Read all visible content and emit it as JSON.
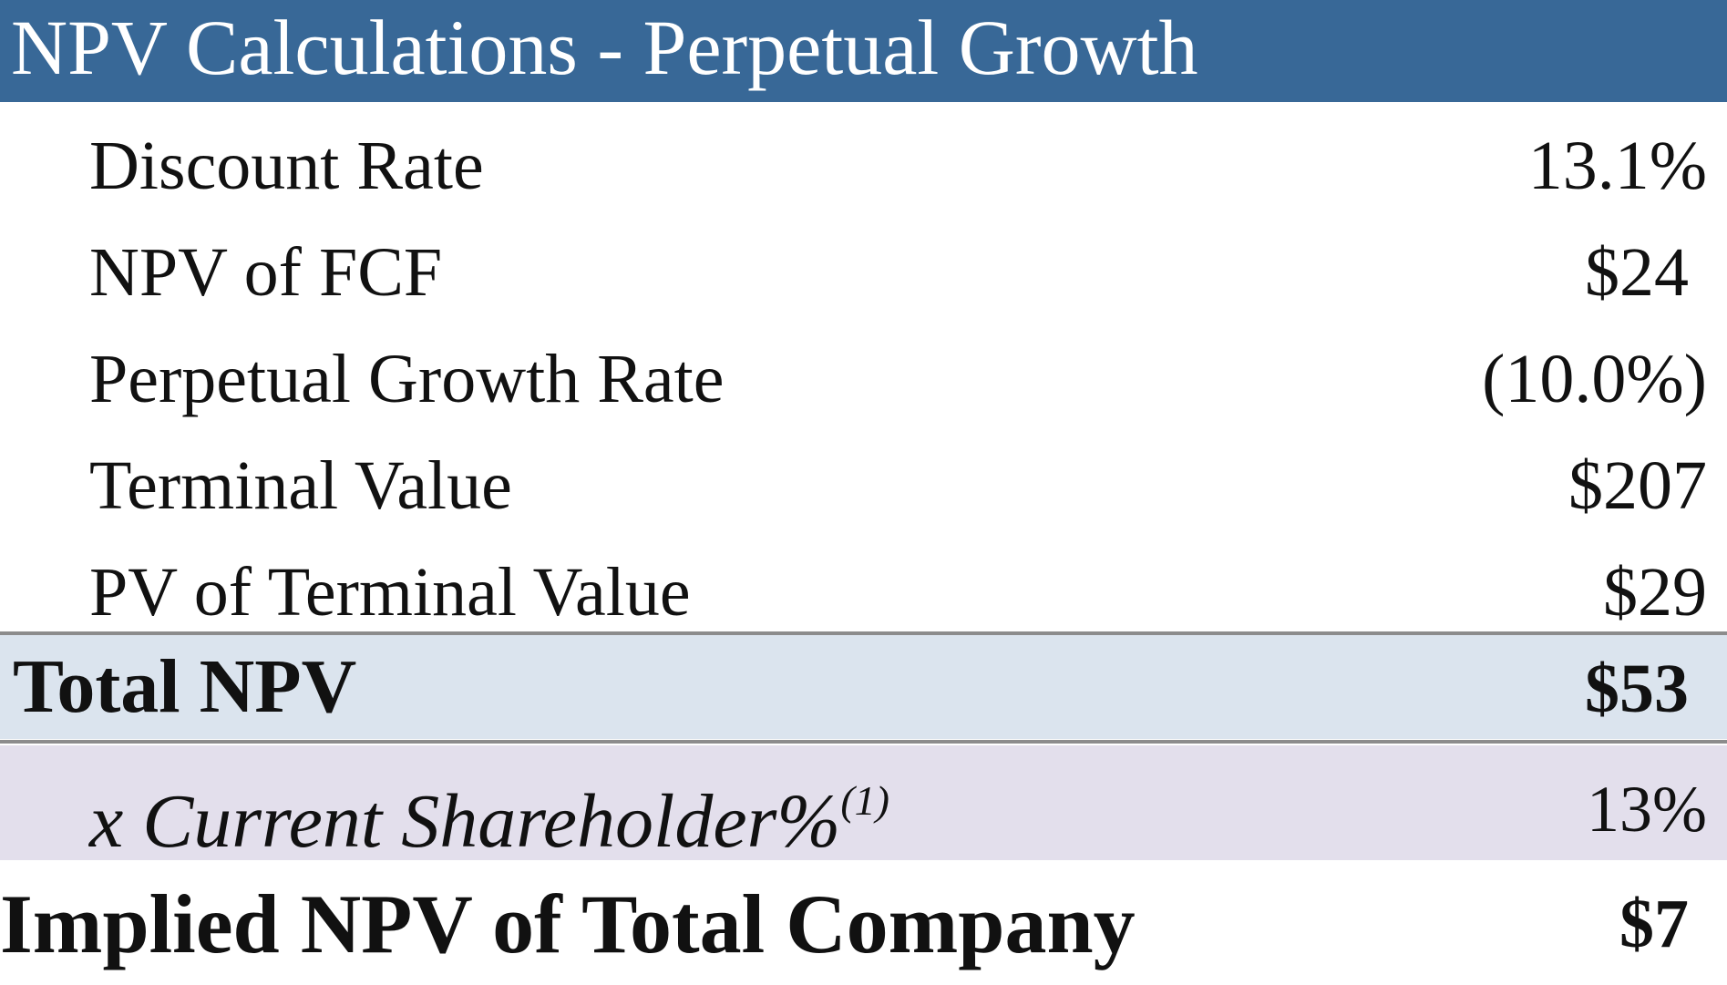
{
  "header": {
    "title": "NPV Calculations - Perpetual Growth"
  },
  "rows": [
    {
      "label": "Discount Rate",
      "value": "13.1%"
    },
    {
      "label": "NPV of FCF",
      "value": "$24"
    },
    {
      "label": "Perpetual Growth Rate",
      "value": "(10.0%)"
    },
    {
      "label": "Terminal Value",
      "value": "$207"
    },
    {
      "label": "PV of Terminal Value",
      "value": "$29"
    }
  ],
  "total": {
    "label": "Total NPV",
    "value": "$53"
  },
  "shareholder": {
    "label": "x Current Shareholder%",
    "footnote": "(1)",
    "value": "13%"
  },
  "implied": {
    "label": "Implied NPV of Total Company",
    "value": "$7"
  },
  "colors": {
    "header_bg": "#386897",
    "total_bg": "#dbe4ee",
    "shareholder_bg": "#e3dfec",
    "divider": "#8c8c8c"
  }
}
